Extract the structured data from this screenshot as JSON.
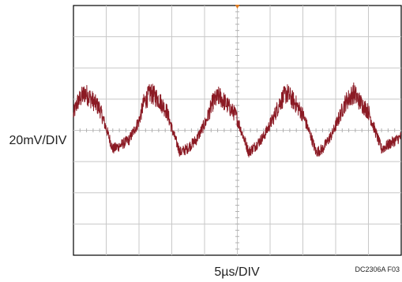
{
  "chart_data": {
    "type": "line",
    "title": "",
    "ylabel": "20mV/DIV",
    "xlabel": "5µs/DIV",
    "figure_id": "DC2306A F03",
    "grid": true,
    "x_divisions": 10,
    "y_divisions": 8,
    "xlim": [
      0,
      10
    ],
    "ylim": [
      -4,
      4
    ],
    "trigger_marker": {
      "x_div": 5,
      "color": "#e07a1f"
    },
    "series": [
      {
        "color": "#8b1a24",
        "x": [
          0.0,
          0.12,
          0.35,
          0.55,
          0.8,
          1.05,
          1.2,
          1.4,
          1.7,
          2.0,
          2.15,
          2.35,
          2.6,
          2.85,
          3.05,
          3.25,
          3.45,
          3.75,
          4.05,
          4.25,
          4.45,
          4.7,
          4.95,
          5.15,
          5.35,
          5.55,
          5.8,
          6.1,
          6.3,
          6.5,
          6.75,
          7.0,
          7.25,
          7.4,
          7.6,
          7.9,
          8.1,
          8.3,
          8.55,
          8.75,
          9.0,
          9.2,
          9.4,
          9.7,
          10.0
        ],
        "values": [
          0.5,
          0.9,
          1.2,
          1.0,
          0.7,
          -0.1,
          -0.6,
          -0.5,
          -0.3,
          0.3,
          0.9,
          1.2,
          1.0,
          0.6,
          -0.1,
          -0.7,
          -0.6,
          -0.3,
          0.3,
          0.9,
          1.1,
          0.8,
          0.5,
          -0.1,
          -0.7,
          -0.5,
          -0.2,
          0.4,
          0.9,
          1.2,
          0.9,
          0.5,
          -0.2,
          -0.7,
          -0.6,
          -0.1,
          0.4,
          0.9,
          1.2,
          0.9,
          0.6,
          0.0,
          -0.6,
          -0.4,
          -0.2
        ],
        "noise_mV_pp": 0.35
      }
    ]
  }
}
